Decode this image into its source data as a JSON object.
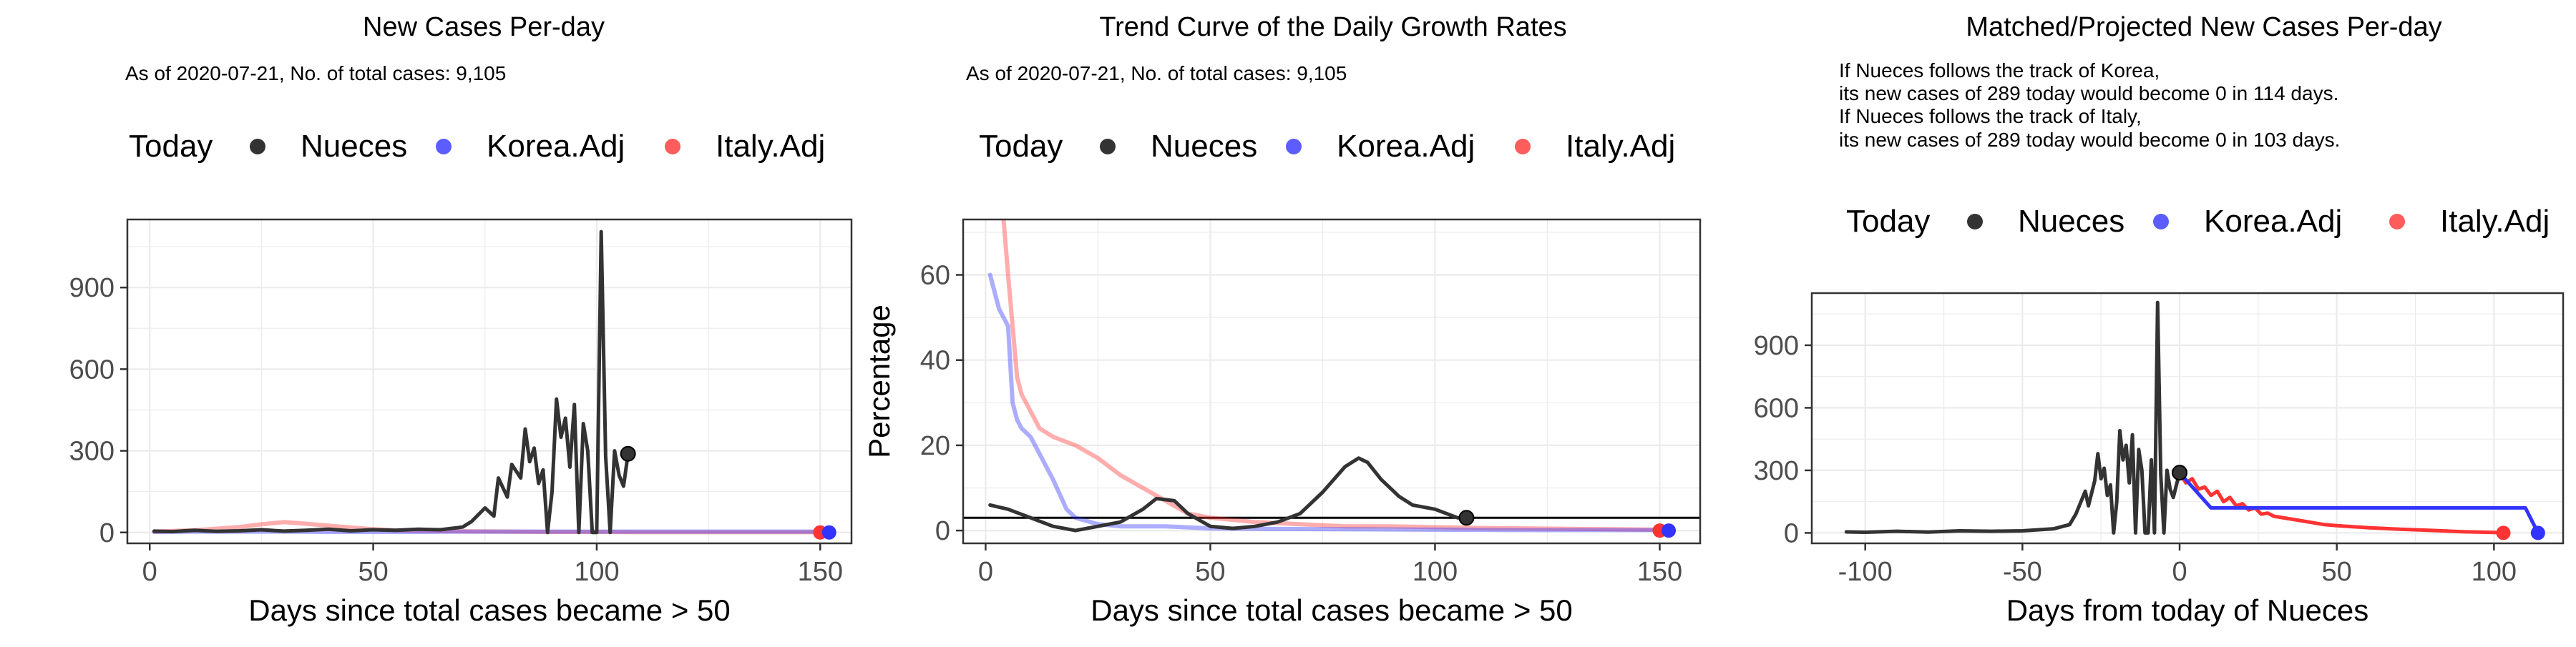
{
  "colors": {
    "nueces": "#333333",
    "nueces_marker": "#000000",
    "korea": "#3333ff",
    "italy": "#ff3333",
    "grid": "#ebebeb",
    "axis": "#000000",
    "ticklabel": "#4d4d4d"
  },
  "legend": {
    "today": "Today",
    "nueces": "Nueces",
    "korea": "Korea.Adj",
    "italy": "Italy.Adj"
  },
  "chart_data": [
    {
      "type": "line",
      "title": "New Cases Per-day",
      "subtitle": "As of 2020-07-21, No. of total cases: 9,105",
      "xlabel": "Days since total cases became > 50",
      "ylabel": "",
      "xlim": [
        -5,
        157
      ],
      "ylim": [
        -40,
        1150
      ],
      "xticks": [
        0,
        50,
        100,
        150
      ],
      "yticks": [
        0,
        300,
        600,
        900
      ],
      "legend_position": "top",
      "series": [
        {
          "name": "Italy.Adj",
          "x": [
            1,
            10,
            20,
            25,
            30,
            35,
            40,
            45,
            50,
            55,
            60,
            70,
            80,
            90,
            100,
            110,
            120,
            130,
            140,
            150
          ],
          "y": [
            3,
            8,
            20,
            30,
            38,
            32,
            25,
            18,
            12,
            8,
            6,
            4,
            3,
            2,
            2,
            1,
            1,
            1,
            1,
            1
          ]
        },
        {
          "name": "Korea.Adj",
          "x": [
            1,
            10,
            20,
            30,
            40,
            50,
            60,
            70,
            80,
            90,
            100,
            110,
            120,
            130,
            140,
            150,
            152
          ],
          "y": [
            2,
            3,
            3,
            3,
            2,
            2,
            2,
            3,
            3,
            3,
            3,
            3,
            3,
            3,
            3,
            3,
            3
          ]
        },
        {
          "name": "Nueces",
          "x": [
            1,
            5,
            10,
            15,
            20,
            25,
            30,
            35,
            40,
            45,
            50,
            55,
            60,
            65,
            70,
            72,
            75,
            77,
            78,
            80,
            81,
            83,
            84,
            85,
            86,
            87,
            88,
            89,
            90,
            91,
            92,
            93,
            94,
            95,
            96,
            97,
            98,
            99,
            100,
            101,
            102,
            103,
            104,
            105,
            106,
            107
          ],
          "y": [
            5,
            3,
            8,
            4,
            6,
            10,
            5,
            8,
            12,
            6,
            10,
            8,
            12,
            10,
            20,
            40,
            90,
            60,
            200,
            130,
            250,
            200,
            380,
            260,
            310,
            180,
            230,
            0,
            150,
            490,
            350,
            420,
            240,
            470,
            0,
            400,
            300,
            0,
            0,
            1105,
            280,
            0,
            300,
            210,
            170,
            289
          ]
        }
      ],
      "today_markers": [
        {
          "name": "Nueces",
          "x": 107,
          "y": 289
        },
        {
          "name": "Italy.Adj",
          "x": 150,
          "y": 0
        },
        {
          "name": "Korea.Adj",
          "x": 152,
          "y": 0
        }
      ]
    },
    {
      "type": "line",
      "title": "Trend Curve of the Daily Growth Rates",
      "subtitle": "As of 2020-07-21, No. of total cases: 9,105",
      "xlabel": "Days since total cases became > 50",
      "ylabel": "Percentage",
      "xlim": [
        -5,
        159
      ],
      "ylim": [
        -3,
        73
      ],
      "xticks": [
        0,
        50,
        100,
        150
      ],
      "yticks": [
        0,
        20,
        40,
        60
      ],
      "hline": 3,
      "legend_position": "top",
      "series": [
        {
          "name": "Italy.Adj",
          "x": [
            4,
            5,
            6,
            7,
            8,
            10,
            12,
            15,
            20,
            25,
            30,
            35,
            40,
            45,
            50,
            60,
            70,
            80,
            90,
            100,
            110,
            120,
            130,
            140,
            150
          ],
          "y": [
            73,
            60,
            48,
            36,
            32,
            28,
            24,
            22,
            20,
            17,
            13,
            10,
            7,
            4,
            3,
            2,
            1.5,
            1,
            1,
            0.8,
            0.6,
            0.5,
            0.4,
            0.3,
            0.2
          ]
        },
        {
          "name": "Korea.Adj",
          "x": [
            1,
            3,
            5,
            6,
            7,
            8,
            10,
            12,
            15,
            18,
            20,
            25,
            30,
            40,
            50,
            60,
            80,
            100,
            120,
            150,
            152
          ],
          "y": [
            60,
            52,
            48,
            30,
            26,
            24,
            22,
            18,
            12,
            5,
            3,
            1.5,
            1,
            1,
            0.5,
            0.4,
            0.3,
            0.2,
            0.1,
            0.1,
            0.1
          ]
        },
        {
          "name": "Nueces",
          "x": [
            1,
            5,
            10,
            15,
            20,
            25,
            30,
            35,
            38,
            42,
            45,
            50,
            55,
            60,
            65,
            70,
            75,
            80,
            83,
            85,
            88,
            92,
            95,
            100,
            105,
            107
          ],
          "y": [
            6,
            5,
            3,
            1,
            0,
            1,
            2,
            5,
            7.5,
            7,
            4,
            1,
            0.5,
            1,
            2,
            4,
            9,
            15,
            17,
            16,
            12,
            8,
            6,
            5,
            3,
            3
          ]
        }
      ],
      "today_markers": [
        {
          "name": "Nueces",
          "x": 107,
          "y": 3
        },
        {
          "name": "Italy.Adj",
          "x": 150,
          "y": 0
        },
        {
          "name": "Korea.Adj",
          "x": 152,
          "y": 0
        }
      ]
    },
    {
      "type": "line",
      "title": "Matched/Projected New Cases Per-day",
      "subtitle_lines": [
        "If Nueces follows the track of Korea,",
        "its new cases of 289 today would become 0 in 114 days.",
        "If Nueces follows the track of Italy,",
        "its new cases of 289 today would become 0 in 103 days."
      ],
      "xlabel": "Days from today of Nueces",
      "ylabel": "",
      "xlim": [
        -117,
        122
      ],
      "ylim": [
        -50,
        1150
      ],
      "xticks": [
        -100,
        -50,
        0,
        50,
        100
      ],
      "yticks": [
        0,
        300,
        600,
        900
      ],
      "legend_position": "top",
      "series": [
        {
          "name": "Nueces",
          "x": [
            -106,
            -100,
            -90,
            -80,
            -70,
            -60,
            -50,
            -40,
            -35,
            -33,
            -30,
            -29,
            -27,
            -26,
            -25,
            -24,
            -23,
            -22,
            -21,
            -20,
            -19,
            -18,
            -17,
            -16,
            -15,
            -14,
            -13,
            -12,
            -11,
            -10,
            -9,
            -8,
            -7,
            -6,
            -5,
            -4,
            -3,
            -2,
            -1,
            0
          ],
          "y": [
            5,
            3,
            8,
            4,
            10,
            8,
            10,
            20,
            40,
            90,
            200,
            130,
            250,
            380,
            260,
            310,
            180,
            230,
            0,
            150,
            490,
            350,
            420,
            240,
            470,
            0,
            400,
            300,
            0,
            0,
            350,
            0,
            1105,
            280,
            0,
            300,
            210,
            170,
            230,
            289
          ]
        },
        {
          "name": "Italy.Adj",
          "x": [
            0,
            2,
            4,
            6,
            8,
            10,
            12,
            14,
            16,
            18,
            20,
            22,
            24,
            26,
            28,
            30,
            34,
            38,
            42,
            46,
            50,
            55,
            60,
            70,
            80,
            90,
            100,
            103
          ],
          "y": [
            289,
            240,
            260,
            210,
            220,
            180,
            200,
            150,
            170,
            130,
            140,
            110,
            120,
            90,
            95,
            80,
            70,
            60,
            50,
            40,
            35,
            30,
            25,
            18,
            12,
            6,
            2,
            0
          ]
        },
        {
          "name": "Korea.Adj",
          "x": [
            0,
            10,
            20,
            30,
            40,
            50,
            60,
            70,
            80,
            90,
            100,
            110,
            114
          ],
          "y": [
            289,
            120,
            120,
            120,
            120,
            120,
            120,
            120,
            120,
            120,
            120,
            120,
            0
          ]
        }
      ],
      "today_markers": [
        {
          "name": "Nueces",
          "x": 0,
          "y": 289
        },
        {
          "name": "Italy.Adj",
          "x": 103,
          "y": 0
        },
        {
          "name": "Korea.Adj",
          "x": 114,
          "y": 0
        }
      ]
    }
  ]
}
